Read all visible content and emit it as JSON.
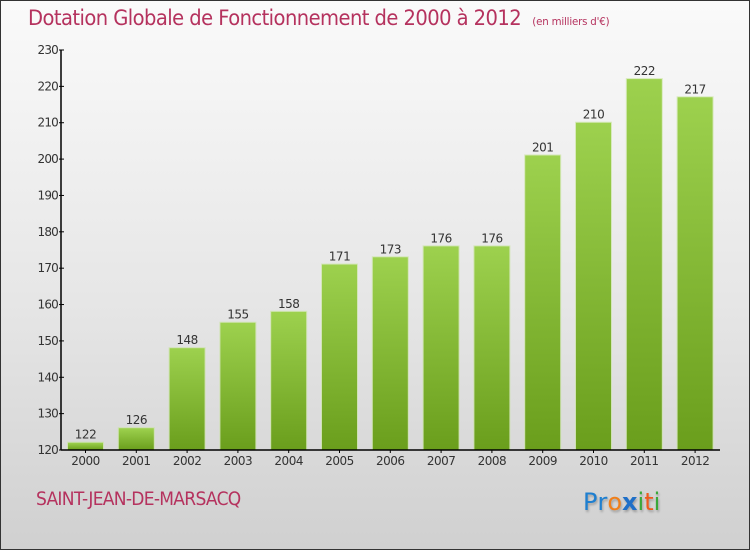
{
  "header": {
    "title": "Dotation Globale de Fonctionnement de 2000 à 2012",
    "unit": "(en milliers d'€)"
  },
  "footer": {
    "commune": "SAINT-JEAN-DE-MARSACQ",
    "logo_letters": [
      {
        "char": "P",
        "color": "#1e7fd0"
      },
      {
        "char": "r",
        "color": "#1e7fd0"
      },
      {
        "char": "o",
        "color": "#f07f1a"
      },
      {
        "char": "x",
        "color": "#1e6fc8"
      },
      {
        "char": "i",
        "color": "#3aa83a"
      },
      {
        "char": "t",
        "color": "#f05a1a"
      },
      {
        "char": "i",
        "color": "#3aa83a"
      }
    ]
  },
  "colors": {
    "title": "#b5325e",
    "bar_top": "#9dd14e",
    "bar_bottom": "#6a9e1c",
    "axis": "#000000",
    "label": "#333333"
  },
  "chart_data": {
    "type": "bar",
    "title": "Dotation Globale de Fonctionnement de 2000 à 2012",
    "subtitle": "(en milliers d'€)",
    "xlabel": "",
    "ylabel": "",
    "categories": [
      "2000",
      "2001",
      "2002",
      "2003",
      "2004",
      "2005",
      "2006",
      "2007",
      "2008",
      "2009",
      "2010",
      "2011",
      "2012"
    ],
    "values": [
      122,
      126,
      148,
      155,
      158,
      171,
      173,
      176,
      176,
      201,
      210,
      222,
      217
    ],
    "ylim": [
      120,
      230
    ],
    "yticks": [
      120,
      130,
      140,
      150,
      160,
      170,
      180,
      190,
      200,
      210,
      220,
      230
    ],
    "grid": false,
    "legend": "none",
    "data_labels": true
  }
}
